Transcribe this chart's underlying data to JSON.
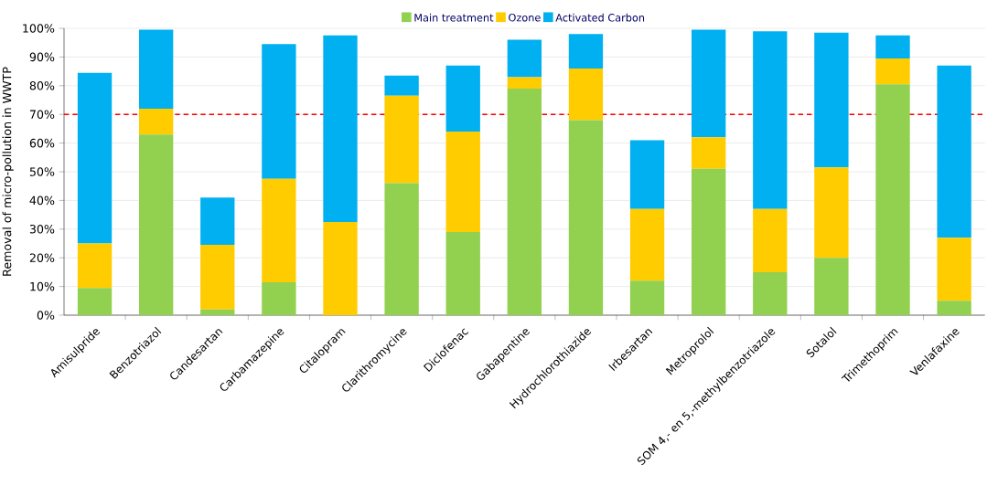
{
  "chart_data": {
    "type": "bar",
    "stacked": true,
    "ylabel": "Removal of micro-pollution in WWTP",
    "categories": [
      "Amisulpride",
      "Benzotriazol",
      "Candesartan",
      "Carbamazepine",
      "Citalopram",
      "Clarithromycine",
      "Diclofenac",
      "Gabapentine",
      "Hydrochlorothiazide",
      "Irbesartan",
      "Metroprolol",
      "SOM 4,- en 5,-methylbenzotriazole",
      "Sotalol",
      "Trimethoprim",
      "Venlafaxine"
    ],
    "series": [
      {
        "name": "Main treatment",
        "color": "#92d050",
        "values": [
          9.5,
          63,
          2,
          11.5,
          0,
          46,
          29,
          79,
          68,
          12,
          51,
          15,
          20,
          80.5,
          5
        ]
      },
      {
        "name": "Ozone",
        "color": "#ffcc00",
        "values": [
          15.5,
          9,
          22.5,
          36,
          32.5,
          30.5,
          35,
          4,
          18,
          25,
          11,
          22,
          31.5,
          9,
          22
        ]
      },
      {
        "name": "Activated Carbon",
        "color": "#00b0f0",
        "values": [
          59.5,
          27.5,
          16.5,
          47,
          65,
          7,
          23,
          13,
          12,
          24,
          37.5,
          62,
          47,
          8,
          60
        ]
      }
    ],
    "ylim": [
      0,
      100
    ],
    "yticks": [
      {
        "value": 0,
        "label": "0%"
      },
      {
        "value": 10,
        "label": "10%"
      },
      {
        "value": 20,
        "label": "20%"
      },
      {
        "value": 30,
        "label": "30%"
      },
      {
        "value": 40,
        "label": "40%"
      },
      {
        "value": 50,
        "label": "50%"
      },
      {
        "value": 60,
        "label": "60%"
      },
      {
        "value": 70,
        "label": "70%"
      },
      {
        "value": 80,
        "label": "80%"
      },
      {
        "value": 90,
        "label": "90%"
      },
      {
        "value": 100,
        "label": "100%"
      }
    ],
    "ref_lines": [
      {
        "axis": "y",
        "value": 70,
        "color": "#ff0000",
        "line_style": "dashed"
      }
    ],
    "grid": "y",
    "legend": "top"
  }
}
